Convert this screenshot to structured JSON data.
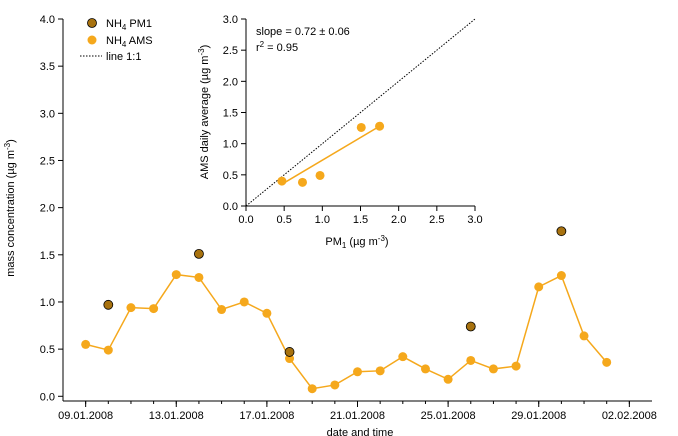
{
  "chart_data": [
    {
      "type": "line",
      "xlabel": "date and time",
      "ylabel_main": "mass concentration (µg m",
      "ylabel_sup": "-3",
      "ylabel_tail": ")",
      "x_axis": {
        "type": "date",
        "min": "2008-01-08",
        "max": "2008-02-03"
      },
      "ylim": [
        -0.05,
        4.0
      ],
      "x_ticks": [
        {
          "date": "2008-01-09",
          "label": "09.01.2008"
        },
        {
          "date": "2008-01-13",
          "label": "13.01.2008"
        },
        {
          "date": "2008-01-17",
          "label": "17.01.2008"
        },
        {
          "date": "2008-01-21",
          "label": "21.01.2008"
        },
        {
          "date": "2008-01-25",
          "label": "25.01.2008"
        },
        {
          "date": "2008-01-29",
          "label": "29.01.2008"
        },
        {
          "date": "2008-02-02",
          "label": "02.02.2008"
        }
      ],
      "y_ticks": [
        0.0,
        0.5,
        1.0,
        1.5,
        2.0,
        2.5,
        3.0,
        3.5,
        4.0
      ],
      "y_tick_labels": [
        "0.0",
        "0.5",
        "1.0",
        "1.5",
        "2.0",
        "2.5",
        "3.0",
        "3.5",
        "4.0"
      ],
      "legend": {
        "placement": "top-left",
        "entries": [
          {
            "main": "NH",
            "sub": "4",
            "tail": " PM1",
            "marker": "circle-dark"
          },
          {
            "main": "NH",
            "sub": "4",
            "tail": " AMS",
            "marker": "circle-orange"
          },
          {
            "label": "line 1:1",
            "marker": "dotted-line"
          }
        ]
      },
      "series": [
        {
          "name": "NH4 AMS",
          "color": "#F5A81C",
          "x": [
            "2008-01-09",
            "2008-01-10",
            "2008-01-11",
            "2008-01-12",
            "2008-01-13",
            "2008-01-14",
            "2008-01-15",
            "2008-01-16",
            "2008-01-17",
            "2008-01-18",
            "2008-01-19",
            "2008-01-20",
            "2008-01-21",
            "2008-01-22",
            "2008-01-23",
            "2008-01-24",
            "2008-01-25",
            "2008-01-26",
            "2008-01-27",
            "2008-01-28",
            "2008-01-29",
            "2008-01-30",
            "2008-01-31",
            "2008-02-01"
          ],
          "y": [
            0.55,
            0.49,
            0.94,
            0.93,
            1.29,
            1.26,
            0.92,
            1.0,
            0.88,
            0.4,
            0.08,
            0.12,
            0.26,
            0.27,
            0.42,
            0.29,
            0.18,
            0.38,
            0.29,
            0.32,
            1.16,
            1.28,
            0.64,
            0.36
          ]
        },
        {
          "name": "NH4 PM1",
          "color": "#A8720F",
          "x": [
            "2008-01-10",
            "2008-01-14",
            "2008-01-18",
            "2008-01-26",
            "2008-01-30"
          ],
          "y": [
            0.97,
            1.51,
            0.47,
            0.74,
            1.75
          ]
        }
      ]
    },
    {
      "type": "scatter",
      "xlabel_main": "PM",
      "xlabel_sub": "1",
      "xlabel_tail": "  (µg m",
      "xlabel_sup": "-3",
      "xlabel_close": ")",
      "ylabel_main": "AMS daily average (µg m",
      "ylabel_sup": "-3",
      "ylabel_tail": ")",
      "xlim": [
        0,
        3.0
      ],
      "ylim": [
        0,
        3.0
      ],
      "ticks": [
        0.0,
        0.5,
        1.0,
        1.5,
        2.0,
        2.5,
        3.0
      ],
      "tick_labels": [
        "0.0",
        "0.5",
        "1.0",
        "1.5",
        "2.0",
        "2.5",
        "3.0"
      ],
      "annotation_slope": "slope = 0.72 ± 0.06",
      "annotation_r2_main": "r",
      "annotation_r2_sup": "2",
      "annotation_r2_tail": " = 0.95",
      "points": {
        "x": [
          0.47,
          0.74,
          0.97,
          1.51,
          1.75
        ],
        "y": [
          0.4,
          0.38,
          0.49,
          1.26,
          1.28
        ]
      },
      "fit_line": {
        "x": [
          0.47,
          1.75
        ],
        "y": [
          0.35,
          1.28
        ]
      },
      "one_to_one": {
        "x": [
          0,
          3.0
        ],
        "y": [
          0,
          3.0
        ]
      }
    }
  ]
}
